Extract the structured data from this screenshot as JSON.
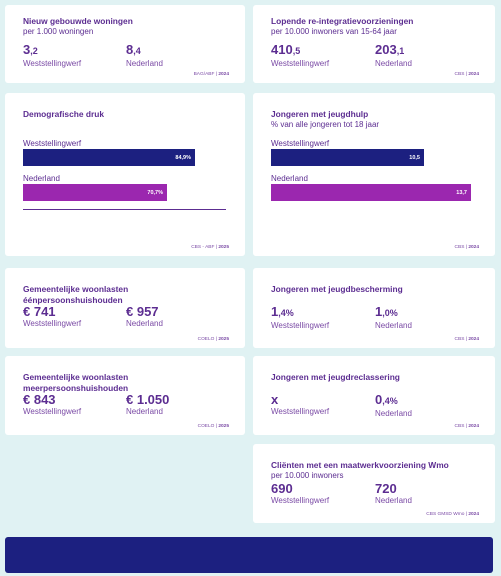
{
  "cards": {
    "woningen": {
      "title": "Nieuw gebouwde woningen",
      "subtitle": "per 1.000 woningen",
      "ws_int": "3",
      "ws_dec": ",2",
      "ws_label": "Weststellingwerf",
      "nl_int": "8",
      "nl_dec": ",4",
      "nl_label": "Nederland",
      "source": "BAG/ABF",
      "year": "2024"
    },
    "reintegratie": {
      "title": "Lopende re-integratievoorzieningen",
      "subtitle": "per 10.000 inwoners van 15-64 jaar",
      "ws_int": "410",
      "ws_dec": ",5",
      "ws_label": "Weststellingwerf",
      "nl_int": "203",
      "nl_dec": ",1",
      "nl_label": "Nederland",
      "source": "CBS",
      "year": "2024"
    },
    "demografie": {
      "title": "Demografische druk",
      "ws_label": "Weststellingwerf",
      "ws_value": 84.9,
      "ws_display": "84,9%",
      "nl_label": "Nederland",
      "nl_value": 70.7,
      "nl_display": "70,7%",
      "source": "CBS - ABF",
      "year": "2025"
    },
    "jeugdhulp": {
      "title": "Jongeren met jeugdhulp",
      "subtitle": "% van alle jongeren tot 18 jaar",
      "ws_label": "Weststellingwerf",
      "ws_value": 10.5,
      "ws_display": "10,5",
      "nl_label": "Nederland",
      "nl_value": 13.7,
      "nl_display": "13,7",
      "source": "CBS",
      "year": "2024"
    },
    "woonlasten_een": {
      "title": "Gemeentelijke woonlasten éénpersoonshuishouden",
      "ws_value": "€ 741",
      "ws_label": "Weststellingwerf",
      "nl_value": "€ 957",
      "nl_label": "Nederland",
      "source": "COELO",
      "year": "2025"
    },
    "jeugdbescherming": {
      "title": "Jongeren met jeugdbescherming",
      "ws_int": "1",
      "ws_dec": ",4%",
      "ws_label": "Weststellingwerf",
      "nl_int": "1",
      "nl_dec": ",0%",
      "nl_label": "Nederland",
      "source": "CBS",
      "year": "2024"
    },
    "woonlasten_meer": {
      "title": "Gemeentelijke woonlasten meerpersoonshuishouden",
      "ws_value": "€ 843",
      "ws_label": "Weststellingwerf",
      "nl_value": "€ 1.050",
      "nl_label": "Nederland",
      "source": "COELO",
      "year": "2025"
    },
    "jeugdreclassering": {
      "title": "Jongeren met jeugdreclassering",
      "ws_value": "x",
      "ws_label": "Weststellingwerf",
      "nl_int": "0",
      "nl_dec": ",4%",
      "nl_label": "Nederland",
      "source": "CBS",
      "year": "2024"
    },
    "wmo": {
      "title": "Cliënten met een maatwerkvoorziening Wmo",
      "subtitle": "per 10.000 inwoners",
      "ws_value": "690",
      "ws_label": "Weststellingwerf",
      "nl_value": "720",
      "nl_label": "Nederland",
      "source": "CBS GMSD Wmo",
      "year": "2024"
    }
  },
  "colors": {
    "weststellingwerf": "#1c2080",
    "nederland": "#9b27af",
    "text": "#5c2d91"
  }
}
